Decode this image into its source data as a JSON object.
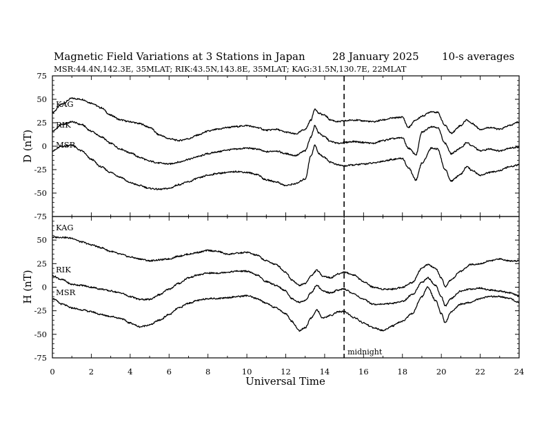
{
  "header": {
    "title": "Magnetic Field Variations at 3 Stations in Japan",
    "date": "28 January 2025",
    "averaging": "10-s averages",
    "stations_line": "MSR:44.4N,142.3E, 35MLAT;  RIK:43.5N,143.8E, 35MLAT;  KAG:31.5N,130.7E, 22MLAT"
  },
  "chart_data": [
    {
      "type": "line",
      "id": "D",
      "ylabel": "D (nT)",
      "ylim": [
        -75,
        75
      ],
      "yticks": [
        "75",
        "50",
        "25",
        "0",
        "-25",
        "-50",
        "-75"
      ],
      "xlim": [
        0,
        24
      ],
      "series": [
        {
          "name": "KAG",
          "x": [
            0,
            0.5,
            1,
            1.5,
            2,
            2.5,
            3,
            3.5,
            4,
            4.5,
            5,
            5.5,
            6,
            6.5,
            7,
            7.5,
            8,
            8.5,
            9,
            9.5,
            10,
            10.5,
            11,
            11.5,
            12,
            12.5,
            13,
            13.3,
            13.5,
            13.7,
            14,
            14.3,
            14.7,
            15,
            15.5,
            16,
            16.5,
            17,
            17.5,
            18,
            18.3,
            18.7,
            19,
            19.5,
            19.8,
            20.2,
            20.5,
            21,
            21.3,
            21.6,
            22,
            22.5,
            23,
            23.5,
            24
          ],
          "y": [
            36,
            45,
            51,
            50,
            46,
            41,
            33,
            28,
            26,
            24,
            20,
            12,
            8,
            6,
            8,
            12,
            16,
            18,
            20,
            21,
            22,
            20,
            17,
            18,
            15,
            13,
            18,
            28,
            40,
            35,
            33,
            28,
            26,
            27,
            28,
            27,
            26,
            28,
            30,
            31,
            20,
            28,
            32,
            37,
            36,
            22,
            14,
            22,
            28,
            24,
            18,
            20,
            18,
            22,
            26
          ]
        },
        {
          "name": "RIK",
          "x": [
            0,
            0.5,
            1,
            1.5,
            2,
            2.5,
            3,
            3.5,
            4,
            4.5,
            5,
            5.5,
            6,
            6.5,
            7,
            7.5,
            8,
            8.5,
            9,
            9.5,
            10,
            10.5,
            11,
            11.5,
            12,
            12.5,
            13,
            13.3,
            13.5,
            13.7,
            14,
            14.3,
            14.7,
            15,
            15.5,
            16,
            16.5,
            17,
            17.5,
            18,
            18.3,
            18.7,
            19,
            19.5,
            19.8,
            20.2,
            20.5,
            21,
            21.3,
            21.6,
            22,
            22.5,
            23,
            23.5,
            24
          ],
          "y": [
            16,
            23,
            26,
            23,
            16,
            10,
            3,
            -3,
            -7,
            -12,
            -16,
            -18,
            -19,
            -17,
            -14,
            -11,
            -8,
            -6,
            -4,
            -3,
            -2,
            -3,
            -6,
            -5,
            -8,
            -10,
            -5,
            10,
            22,
            14,
            10,
            5,
            3,
            4,
            5,
            4,
            3,
            6,
            8,
            9,
            -2,
            -9,
            15,
            21,
            20,
            3,
            -8,
            -2,
            4,
            0,
            -5,
            -3,
            -5,
            -2,
            -1
          ]
        },
        {
          "name": "MSR",
          "x": [
            0,
            0.5,
            1,
            1.5,
            2,
            2.5,
            3,
            3.5,
            4,
            4.5,
            5,
            5.5,
            6,
            6.5,
            7,
            7.5,
            8,
            8.5,
            9,
            9.5,
            10,
            10.5,
            11,
            11.5,
            12,
            12.5,
            13,
            13.3,
            13.5,
            13.7,
            14,
            14.3,
            14.7,
            15,
            15.5,
            16,
            16.5,
            17,
            17.5,
            18,
            18.3,
            18.7,
            19,
            19.5,
            19.8,
            20.2,
            20.5,
            21,
            21.3,
            21.6,
            22,
            22.5,
            23,
            23.5,
            24
          ],
          "y": [
            -5,
            0,
            1,
            -5,
            -14,
            -22,
            -28,
            -33,
            -39,
            -42,
            -45,
            -46,
            -45,
            -41,
            -38,
            -34,
            -31,
            -29,
            -28,
            -27,
            -28,
            -30,
            -36,
            -38,
            -42,
            -40,
            -35,
            -10,
            1,
            -8,
            -12,
            -17,
            -20,
            -21,
            -20,
            -19,
            -18,
            -16,
            -14,
            -13,
            -23,
            -36,
            -18,
            -2,
            -3,
            -25,
            -37,
            -30,
            -22,
            -26,
            -31,
            -28,
            -26,
            -22,
            -20
          ]
        }
      ]
    },
    {
      "type": "line",
      "id": "H",
      "ylabel": "H (nT)",
      "ylim": [
        -75,
        75
      ],
      "yticks": [
        "75",
        "50",
        "25",
        "0",
        "-25",
        "-50",
        "-75"
      ],
      "xlim": [
        0,
        24
      ],
      "xticks": [
        "0",
        "2",
        "4",
        "6",
        "8",
        "10",
        "12",
        "14",
        "16",
        "18",
        "20",
        "22",
        "24"
      ],
      "xlabel": "Universal Time",
      "series": [
        {
          "name": "KAG",
          "x": [
            0,
            0.5,
            1,
            1.5,
            2,
            2.5,
            3,
            3.5,
            4,
            4.5,
            5,
            5.5,
            6,
            6.5,
            7,
            7.5,
            8,
            8.5,
            9,
            9.5,
            10,
            10.5,
            11,
            11.5,
            12,
            12.3,
            12.7,
            13,
            13.3,
            13.6,
            13.9,
            14.3,
            14.7,
            15,
            15.5,
            16,
            16.5,
            17,
            17.5,
            18,
            18.5,
            19,
            19.3,
            19.7,
            20,
            20.2,
            20.5,
            21,
            21.5,
            22,
            22.5,
            23,
            23.5,
            24
          ],
          "y": [
            53,
            53,
            52,
            48,
            45,
            42,
            38,
            35,
            32,
            30,
            28,
            29,
            30,
            33,
            35,
            37,
            39,
            38,
            35,
            36,
            37,
            34,
            28,
            24,
            16,
            8,
            2,
            4,
            12,
            18,
            12,
            10,
            14,
            16,
            13,
            6,
            0,
            -2,
            -2,
            0,
            5,
            20,
            24,
            20,
            10,
            0,
            8,
            17,
            24,
            25,
            28,
            30,
            28,
            28
          ]
        },
        {
          "name": "RIK",
          "x": [
            0,
            0.5,
            1,
            1.5,
            2,
            2.5,
            3,
            3.5,
            4,
            4.5,
            5,
            5.5,
            6,
            6.5,
            7,
            7.5,
            8,
            8.5,
            9,
            9.5,
            10,
            10.5,
            11,
            11.5,
            12,
            12.3,
            12.7,
            13,
            13.3,
            13.6,
            13.9,
            14.3,
            14.7,
            15,
            15.5,
            16,
            16.5,
            17,
            17.5,
            18,
            18.5,
            19,
            19.3,
            19.7,
            20,
            20.2,
            20.5,
            21,
            21.5,
            22,
            22.5,
            23,
            23.5,
            24
          ],
          "y": [
            12,
            8,
            3,
            2,
            0,
            -2,
            -4,
            -6,
            -10,
            -13,
            -13,
            -8,
            -2,
            4,
            10,
            13,
            15,
            15,
            16,
            17,
            17,
            13,
            6,
            2,
            -4,
            -12,
            -16,
            -14,
            -6,
            2,
            -4,
            -6,
            -3,
            -2,
            -7,
            -13,
            -18,
            -18,
            -17,
            -15,
            -8,
            5,
            10,
            2,
            -10,
            -20,
            -12,
            -4,
            -2,
            -1,
            -3,
            -4,
            -6,
            -9
          ]
        },
        {
          "name": "MSR",
          "x": [
            0,
            0.5,
            1,
            1.5,
            2,
            2.5,
            3,
            3.5,
            4,
            4.5,
            5,
            5.5,
            6,
            6.5,
            7,
            7.5,
            8,
            8.5,
            9,
            9.5,
            10,
            10.5,
            11,
            11.5,
            12,
            12.3,
            12.7,
            13,
            13.3,
            13.6,
            13.9,
            14.3,
            14.7,
            15,
            15.5,
            16,
            16.5,
            17,
            17.5,
            18,
            18.5,
            19,
            19.3,
            19.7,
            20,
            20.2,
            20.5,
            21,
            21.5,
            22,
            22.5,
            23,
            23.5,
            24
          ],
          "y": [
            -12,
            -18,
            -22,
            -24,
            -26,
            -29,
            -31,
            -33,
            -38,
            -42,
            -40,
            -35,
            -29,
            -22,
            -17,
            -14,
            -12,
            -12,
            -11,
            -10,
            -9,
            -12,
            -17,
            -22,
            -28,
            -36,
            -46,
            -43,
            -33,
            -24,
            -33,
            -30,
            -26,
            -26,
            -32,
            -38,
            -43,
            -46,
            -41,
            -36,
            -28,
            -10,
            0,
            -14,
            -28,
            -38,
            -26,
            -18,
            -16,
            -12,
            -10,
            -10,
            -12,
            -16
          ]
        }
      ]
    }
  ],
  "annotations": {
    "midnight_label": "midnight",
    "midnight_ut": 15
  }
}
